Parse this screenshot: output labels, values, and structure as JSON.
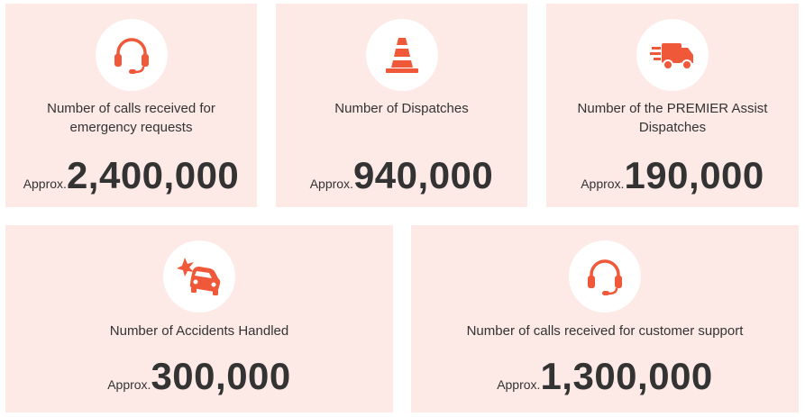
{
  "accent_color": "#f0583a",
  "card_background": "#fde9e6",
  "cards": [
    {
      "icon": "headset-icon",
      "label": "Number of calls received for emergency requests",
      "prefix": "Approx.",
      "value": "2,400,000"
    },
    {
      "icon": "traffic-cone-icon",
      "label": "Number of Dispatches",
      "prefix": "Approx.",
      "value": "940,000"
    },
    {
      "icon": "delivery-truck-icon",
      "label": "Number of the PREMIER Assist Dispatches",
      "prefix": "Approx.",
      "value": "190,000"
    },
    {
      "icon": "car-crash-icon",
      "label": "Number of Accidents Handled",
      "prefix": "Approx.",
      "value": "300,000"
    },
    {
      "icon": "headset-icon",
      "label": "Number of calls received for customer support",
      "prefix": "Approx.",
      "value": "1,300,000"
    }
  ]
}
